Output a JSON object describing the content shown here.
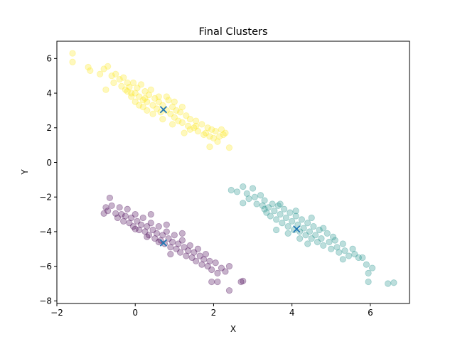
{
  "chart_data": {
    "type": "scatter",
    "title": "Final Clusters",
    "xlabel": "X",
    "ylabel": "Y",
    "xlim": [
      -2,
      7
    ],
    "ylim": [
      -8.15,
      7.0
    ],
    "xticks": [
      -2,
      0,
      2,
      4,
      6
    ],
    "yticks": [
      -8,
      -6,
      -4,
      -2,
      0,
      2,
      4,
      6
    ],
    "grid": false,
    "legend": "none",
    "point_alpha": 0.3,
    "series": [
      {
        "color": "#fde725",
        "points": [
          [
            -1.6,
            6.3
          ],
          [
            -1.6,
            5.8
          ],
          [
            -1.2,
            5.5
          ],
          [
            -1.15,
            5.3
          ],
          [
            -0.9,
            5.1
          ],
          [
            -0.8,
            5.4
          ],
          [
            -0.7,
            5.55
          ],
          [
            -0.6,
            5.0
          ],
          [
            -0.75,
            4.2
          ],
          [
            -0.55,
            4.6
          ],
          [
            -0.5,
            5.1
          ],
          [
            -0.4,
            4.8
          ],
          [
            -0.35,
            4.4
          ],
          [
            -0.3,
            4.9
          ],
          [
            -0.25,
            4.2
          ],
          [
            -0.2,
            4.6
          ],
          [
            -0.15,
            4.35
          ],
          [
            -0.1,
            4.0
          ],
          [
            -0.05,
            4.6
          ],
          [
            0.0,
            4.0
          ],
          [
            0.05,
            4.3
          ],
          [
            0.1,
            3.8
          ],
          [
            0.15,
            4.5
          ],
          [
            0.2,
            3.6
          ],
          [
            0.25,
            4.1
          ],
          [
            0.3,
            3.5
          ],
          [
            0.35,
            3.9
          ],
          [
            0.4,
            4.2
          ],
          [
            0.45,
            3.3
          ],
          [
            0.5,
            3.7
          ],
          [
            0.55,
            3.1
          ],
          [
            0.6,
            3.5
          ],
          [
            0.65,
            2.9
          ],
          [
            0.7,
            3.3
          ],
          [
            0.8,
            3.0
          ],
          [
            0.85,
            3.6
          ],
          [
            0.9,
            2.8
          ],
          [
            0.95,
            3.2
          ],
          [
            1.0,
            2.6
          ],
          [
            1.05,
            3.0
          ],
          [
            1.1,
            2.4
          ],
          [
            1.15,
            2.9
          ],
          [
            1.2,
            2.3
          ],
          [
            1.3,
            2.7
          ],
          [
            1.35,
            2.1
          ],
          [
            1.4,
            2.5
          ],
          [
            1.5,
            2.0
          ],
          [
            1.55,
            2.4
          ],
          [
            1.6,
            1.8
          ],
          [
            1.7,
            2.2
          ],
          [
            1.75,
            1.6
          ],
          [
            1.85,
            2.0
          ],
          [
            1.9,
            1.5
          ],
          [
            1.95,
            1.9
          ],
          [
            2.0,
            1.4
          ],
          [
            2.05,
            1.8
          ],
          [
            2.1,
            1.2
          ],
          [
            2.15,
            1.5
          ],
          [
            2.2,
            1.9
          ],
          [
            2.25,
            1.6
          ],
          [
            2.3,
            1.7
          ],
          [
            2.4,
            0.85
          ],
          [
            1.9,
            0.9
          ],
          [
            0.1,
            3.3
          ],
          [
            0.3,
            3.0
          ],
          [
            -0.1,
            3.8
          ],
          [
            0.0,
            3.5
          ],
          [
            0.2,
            3.2
          ],
          [
            0.6,
            3.8
          ],
          [
            0.8,
            3.8
          ],
          [
            1.0,
            3.5
          ],
          [
            1.2,
            3.2
          ],
          [
            0.45,
            2.8
          ],
          [
            0.7,
            2.5
          ],
          [
            1.4,
            1.9
          ],
          [
            1.25,
            1.7
          ],
          [
            -0.2,
            4.1
          ],
          [
            0.25,
            3.7
          ],
          [
            0.95,
            2.2
          ],
          [
            1.55,
            2.1
          ],
          [
            1.8,
            1.7
          ]
        ]
      },
      {
        "color": "#21918c",
        "points": [
          [
            2.45,
            -1.6
          ],
          [
            2.6,
            -1.7
          ],
          [
            2.75,
            -1.4
          ],
          [
            2.85,
            -1.8
          ],
          [
            2.9,
            -2.1
          ],
          [
            3.0,
            -1.5
          ],
          [
            3.05,
            -2.0
          ],
          [
            3.1,
            -2.4
          ],
          [
            2.75,
            -2.35
          ],
          [
            3.2,
            -1.9
          ],
          [
            3.25,
            -2.5
          ],
          [
            3.3,
            -2.2
          ],
          [
            3.35,
            -2.9
          ],
          [
            3.4,
            -2.6
          ],
          [
            3.45,
            -3.1
          ],
          [
            3.5,
            -2.4
          ],
          [
            3.55,
            -2.8
          ],
          [
            3.6,
            -3.3
          ],
          [
            3.65,
            -2.5
          ],
          [
            3.7,
            -3.0
          ],
          [
            3.75,
            -3.5
          ],
          [
            3.8,
            -2.7
          ],
          [
            3.85,
            -3.2
          ],
          [
            3.9,
            -3.7
          ],
          [
            3.95,
            -2.9
          ],
          [
            4.0,
            -3.4
          ],
          [
            4.05,
            -3.9
          ],
          [
            4.1,
            -3.1
          ],
          [
            4.15,
            -3.6
          ],
          [
            4.2,
            -4.0
          ],
          [
            4.25,
            -3.3
          ],
          [
            4.3,
            -3.8
          ],
          [
            4.35,
            -4.2
          ],
          [
            4.4,
            -3.5
          ],
          [
            4.45,
            -4.0
          ],
          [
            4.5,
            -4.4
          ],
          [
            4.55,
            -3.7
          ],
          [
            4.6,
            -4.2
          ],
          [
            4.65,
            -4.6
          ],
          [
            4.7,
            -3.9
          ],
          [
            4.75,
            -4.4
          ],
          [
            4.8,
            -4.8
          ],
          [
            4.9,
            -4.1
          ],
          [
            4.95,
            -4.6
          ],
          [
            5.0,
            -5.0
          ],
          [
            5.1,
            -4.5
          ],
          [
            5.15,
            -4.9
          ],
          [
            5.2,
            -5.2
          ],
          [
            5.3,
            -4.7
          ],
          [
            5.35,
            -5.1
          ],
          [
            5.45,
            -5.4
          ],
          [
            5.55,
            -5.0
          ],
          [
            5.6,
            -5.3
          ],
          [
            5.7,
            -5.5
          ],
          [
            5.8,
            -5.5
          ],
          [
            5.9,
            -5.9
          ],
          [
            5.95,
            -6.4
          ],
          [
            6.05,
            -6.1
          ],
          [
            5.95,
            -6.9
          ],
          [
            6.45,
            -7.0
          ],
          [
            6.6,
            -6.95
          ],
          [
            5.3,
            -5.6
          ],
          [
            3.6,
            -3.9
          ],
          [
            3.9,
            -4.1
          ],
          [
            4.2,
            -4.4
          ],
          [
            4.5,
            -3.2
          ],
          [
            4.8,
            -3.8
          ],
          [
            3.3,
            -2.7
          ],
          [
            3.7,
            -2.4
          ],
          [
            4.1,
            -2.8
          ],
          [
            4.4,
            -4.7
          ],
          [
            5.05,
            -4.3
          ]
        ]
      },
      {
        "color": "#440154",
        "points": [
          [
            -0.8,
            -2.95
          ],
          [
            -0.75,
            -2.6
          ],
          [
            -0.7,
            -2.8
          ],
          [
            -0.65,
            -2.05
          ],
          [
            -0.6,
            -2.5
          ],
          [
            -0.5,
            -2.95
          ],
          [
            -0.45,
            -3.2
          ],
          [
            -0.4,
            -2.6
          ],
          [
            -0.35,
            -3.0
          ],
          [
            -0.3,
            -3.4
          ],
          [
            -0.25,
            -3.1
          ],
          [
            -0.2,
            -2.7
          ],
          [
            -0.15,
            -3.5
          ],
          [
            -0.1,
            -3.2
          ],
          [
            -0.05,
            -3.7
          ],
          [
            0.0,
            -3.0
          ],
          [
            0.05,
            -3.4
          ],
          [
            0.1,
            -3.9
          ],
          [
            0.15,
            -3.6
          ],
          [
            0.2,
            -3.2
          ],
          [
            0.25,
            -4.0
          ],
          [
            0.3,
            -3.7
          ],
          [
            0.35,
            -4.2
          ],
          [
            0.4,
            -3.5
          ],
          [
            0.45,
            -3.9
          ],
          [
            0.5,
            -4.4
          ],
          [
            0.55,
            -4.1
          ],
          [
            0.6,
            -3.7
          ],
          [
            0.65,
            -4.5
          ],
          [
            0.7,
            -4.2
          ],
          [
            0.75,
            -4.7
          ],
          [
            0.8,
            -4.0
          ],
          [
            0.85,
            -4.4
          ],
          [
            0.9,
            -4.9
          ],
          [
            0.95,
            -4.6
          ],
          [
            1.0,
            -4.2
          ],
          [
            1.05,
            -5.0
          ],
          [
            1.1,
            -4.7
          ],
          [
            1.15,
            -5.2
          ],
          [
            1.2,
            -4.5
          ],
          [
            1.25,
            -4.9
          ],
          [
            1.3,
            -5.4
          ],
          [
            1.35,
            -5.1
          ],
          [
            1.4,
            -4.8
          ],
          [
            1.45,
            -5.5
          ],
          [
            1.5,
            -5.2
          ],
          [
            1.55,
            -5.7
          ],
          [
            1.6,
            -5.0
          ],
          [
            1.65,
            -5.4
          ],
          [
            1.7,
            -5.9
          ],
          [
            1.75,
            -5.6
          ],
          [
            1.8,
            -5.3
          ],
          [
            1.85,
            -6.0
          ],
          [
            1.9,
            -5.7
          ],
          [
            1.95,
            -6.2
          ],
          [
            2.05,
            -5.8
          ],
          [
            2.1,
            -6.4
          ],
          [
            2.2,
            -6.1
          ],
          [
            2.3,
            -6.3
          ],
          [
            2.4,
            -6.0
          ],
          [
            1.95,
            -6.9
          ],
          [
            2.1,
            -6.9
          ],
          [
            2.4,
            -7.4
          ],
          [
            2.7,
            -6.9
          ],
          [
            2.75,
            -6.85
          ],
          [
            0.0,
            -3.85
          ],
          [
            0.3,
            -4.3
          ],
          [
            0.6,
            -4.6
          ],
          [
            0.9,
            -5.3
          ],
          [
            0.4,
            -3.0
          ],
          [
            0.8,
            -3.6
          ],
          [
            1.2,
            -4.1
          ]
        ]
      }
    ],
    "centroids": {
      "color": "#1f77b4",
      "points": [
        [
          0.72,
          3.05
        ],
        [
          4.12,
          -3.85
        ],
        [
          0.72,
          -4.65
        ]
      ]
    }
  }
}
